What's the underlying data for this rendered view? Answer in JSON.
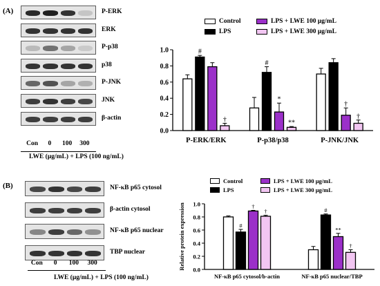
{
  "panel_a": {
    "label": "(A)",
    "blots": [
      "P-ERK",
      "ERK",
      "P-p38",
      "p38",
      "P-JNK",
      "JNK",
      "β-actin"
    ],
    "lanes": [
      "Con",
      "0",
      "100",
      "300"
    ],
    "xcaption": "LWE (μg/mL) + LPS (100 ng/mL)"
  },
  "panel_b": {
    "label": "(B)",
    "blots": [
      "NF-κB p65 cytosol",
      "β-actin cytosol",
      "NF-κB p65 nuclear",
      "TBP nuclear"
    ],
    "lanes": [
      "Con",
      "0",
      "100",
      "300"
    ],
    "xcaption": "LWE (μg/mL) + LPS (100 ng/mL)"
  },
  "legend": {
    "a": [
      "Control",
      "LPS",
      "LPS + LWE 100 μg/mL",
      "LPS + LWE 300 μg/mL"
    ],
    "b": [
      "Control",
      "LPS",
      "LPS + LWE 100 μg/mL",
      "LPS + LWE 300 μg/mL"
    ]
  },
  "colors": {
    "control": "#ffffff",
    "lps": "#000000",
    "lwe100": "#9b30c9",
    "lwe300": "#f2c6f2"
  },
  "chart_data": [
    {
      "type": "bar",
      "ylabel": "Relative protein expression",
      "ylim": [
        0,
        1.0
      ],
      "yticks": [
        "0.0",
        "0.2",
        "0.4",
        "0.6",
        "0.8",
        "1.0"
      ],
      "categories": [
        "P-ERK/ERK",
        "P-p38/p38",
        "P-JNK/JNK"
      ],
      "series": [
        {
          "name": "Control",
          "values": [
            0.64,
            0.28,
            0.7
          ],
          "errors": [
            0.05,
            0.13,
            0.07
          ],
          "marks": [
            "",
            "",
            ""
          ]
        },
        {
          "name": "LPS",
          "values": [
            0.91,
            0.72,
            0.84
          ],
          "errors": [
            0.02,
            0.07,
            0.05
          ],
          "marks": [
            "#",
            "#",
            ""
          ]
        },
        {
          "name": "LPS + LWE 100 μg/mL",
          "values": [
            0.79,
            0.23,
            0.19
          ],
          "errors": [
            0.05,
            0.11,
            0.09
          ],
          "marks": [
            "",
            "*",
            "†"
          ]
        },
        {
          "name": "LPS + LWE 300 μg/mL",
          "values": [
            0.06,
            0.04,
            0.09
          ],
          "errors": [
            0.03,
            0.01,
            0.04
          ],
          "marks": [
            "†",
            "**",
            "†"
          ]
        }
      ],
      "grid": false
    },
    {
      "type": "bar",
      "ylabel": "Relative protein expression",
      "ylim": [
        0,
        1.0
      ],
      "yticks": [
        "0.0",
        "0.2",
        "0.4",
        "0.6",
        "0.8",
        "1.0"
      ],
      "categories": [
        "NF-κB p65 cytosol/b-actin",
        "NF-κB p65 nuclear/TBP"
      ],
      "series": [
        {
          "name": "Control",
          "values": [
            0.8,
            0.3
          ],
          "errors": [
            0.015,
            0.05
          ],
          "marks": [
            "",
            ""
          ]
        },
        {
          "name": "LPS",
          "values": [
            0.57,
            0.83
          ],
          "errors": [
            0.04,
            0.015
          ],
          "marks": [
            "#",
            "#"
          ]
        },
        {
          "name": "LPS + LWE 100 μg/mL",
          "values": [
            0.89,
            0.5
          ],
          "errors": [
            0.01,
            0.05
          ],
          "marks": [
            "†",
            "**"
          ]
        },
        {
          "name": "LPS + LWE 300 μg/mL",
          "values": [
            0.81,
            0.26
          ],
          "errors": [
            0.015,
            0.04
          ],
          "marks": [
            "†",
            "†"
          ]
        }
      ],
      "grid": false
    }
  ]
}
